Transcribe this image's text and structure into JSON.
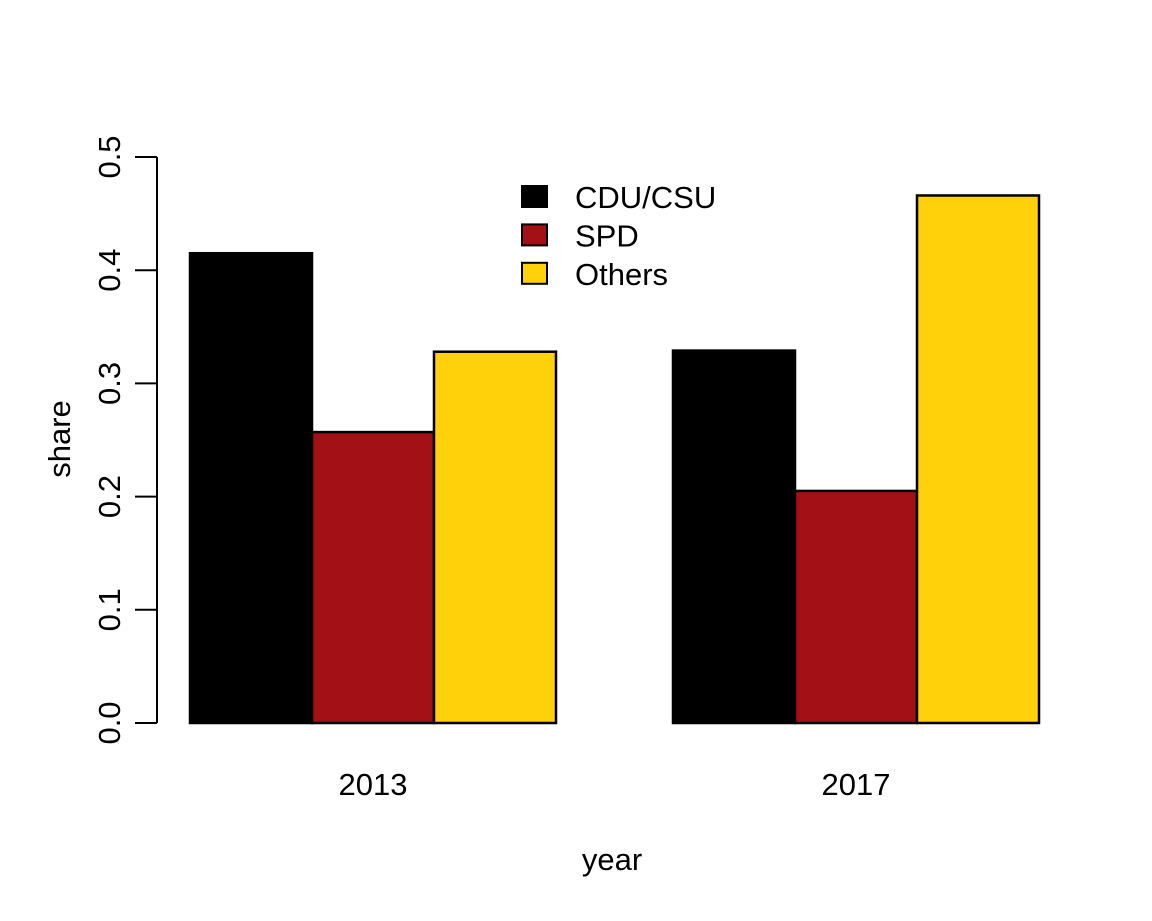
{
  "chart_data": {
    "type": "bar",
    "title": "",
    "categories": [
      "2013",
      "2017"
    ],
    "series": [
      {
        "name": "CDU/CSU",
        "color": "#000000",
        "values": [
          0.415,
          0.329
        ]
      },
      {
        "name": "SPD",
        "color": "#A31117",
        "values": [
          0.257,
          0.205
        ]
      },
      {
        "name": "Others",
        "color": "#FFD10B",
        "values": [
          0.328,
          0.466
        ]
      }
    ],
    "xlabel": "year",
    "ylabel": "share",
    "ylim": [
      0,
      0.5
    ],
    "yticks": [
      "0.0",
      "0.1",
      "0.2",
      "0.3",
      "0.4",
      "0.5"
    ],
    "grid": false,
    "legend_position": "top-center",
    "bar_border_color": "#000000",
    "axis_color": "#000000",
    "background_color": "#FFFFFF"
  }
}
